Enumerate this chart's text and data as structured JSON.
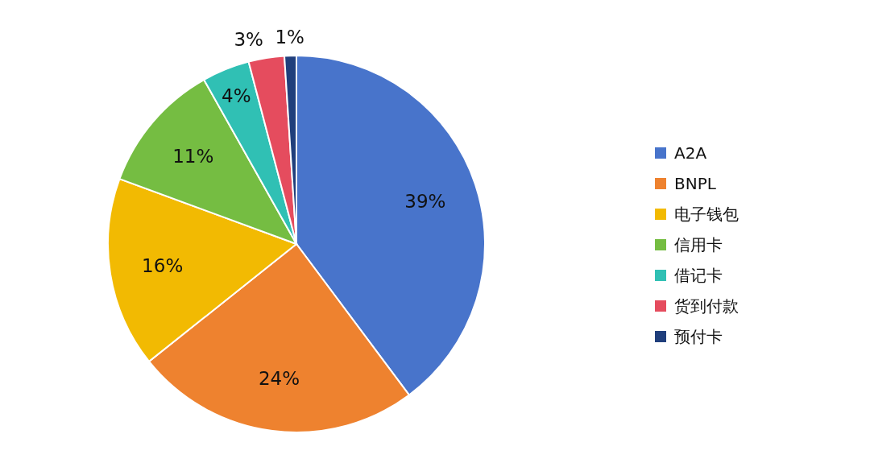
{
  "chart_data": {
    "type": "pie",
    "categories": [
      "A2A",
      "BNPL",
      "电子钱包",
      "信用卡",
      "借记卡",
      "货到付款",
      "预付卡"
    ],
    "values": [
      39,
      24,
      16,
      11,
      4,
      3,
      1
    ],
    "colors": [
      "#4874cb",
      "#ee822f",
      "#f2ba02",
      "#75bd42",
      "#30c0b4",
      "#e54c5e",
      "#203f7c"
    ],
    "value_labels": [
      "39%",
      "24%",
      "16%",
      "11%",
      "4%",
      "3%",
      "1%"
    ],
    "legend": "right"
  }
}
